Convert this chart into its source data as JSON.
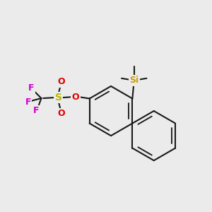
{
  "background_color": "#ebebeb",
  "bond_color": "#1a1a1a",
  "bond_width": 1.5,
  "atom_colors": {
    "Si": "#c8a000",
    "S": "#b8b800",
    "O": "#e00000",
    "F": "#cc00cc",
    "C": "#1a1a1a"
  }
}
